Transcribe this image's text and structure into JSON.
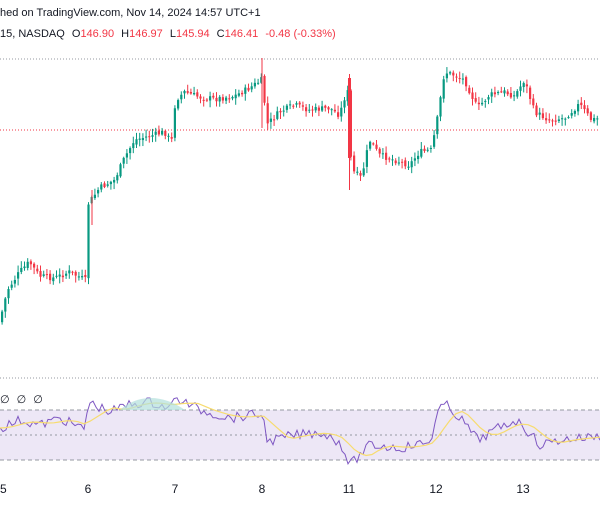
{
  "header": {
    "published": "hed on TradingView.com, Nov 14, 2024 14:57 UTC+1",
    "symbol": "15, NASDAQ",
    "open_label": "O",
    "open": "146.90",
    "high_label": "H",
    "high": "146.97",
    "low_label": "L",
    "low": "145.94",
    "close_label": "C",
    "close": "146.41",
    "change": "-0.48 (-0.33%)"
  },
  "rsi_legend": "∅ ∅ ∅",
  "x_axis": {
    "labels": [
      "5",
      "6",
      "7",
      "8",
      "11",
      "12",
      "13"
    ]
  },
  "colors": {
    "up": "#089981",
    "down": "#f23645",
    "rsi_line": "#7e57c2",
    "rsi_ma": "#f7dc6f",
    "rsi_band": "#ede7f6",
    "dotted": "#9598a1"
  }
}
